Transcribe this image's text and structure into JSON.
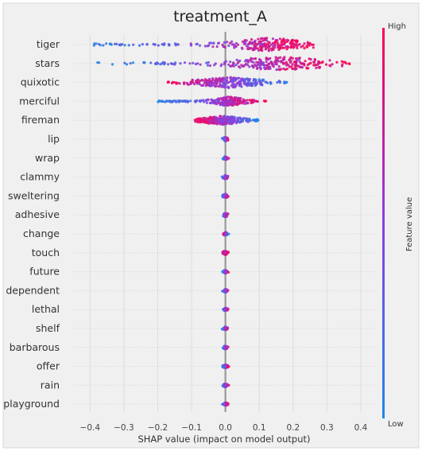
{
  "chart_data": {
    "type": "scatter",
    "title": "treatment_A",
    "xlabel": "SHAP value (impact on model output)",
    "xlim": [
      -0.45,
      0.44
    ],
    "xticks": [
      -0.4,
      -0.3,
      -0.2,
      -0.1,
      0.0,
      0.1,
      0.2,
      0.3,
      0.4
    ],
    "xtick_labels": [
      "−0.4",
      "−0.3",
      "−0.2",
      "−0.1",
      "0.0",
      "0.1",
      "0.2",
      "0.3",
      "0.4"
    ],
    "colorbar": {
      "label": "Feature value",
      "high": "High",
      "low": "Low",
      "color_low": "#1e88e5",
      "color_high": "#ff0052"
    },
    "grid": true,
    "features": [
      {
        "name": "tiger",
        "min": -0.39,
        "max": 0.26,
        "center": 0.13,
        "spread": 0.06,
        "width": 0.95,
        "low_side": "left"
      },
      {
        "name": "stars",
        "min": -0.38,
        "max": 0.37,
        "center": 0.16,
        "spread": 0.07,
        "width": 1.0,
        "low_side": "left"
      },
      {
        "name": "quixotic",
        "min": -0.17,
        "max": 0.2,
        "center": 0.01,
        "spread": 0.05,
        "width": 0.75,
        "low_side": "right"
      },
      {
        "name": "merciful",
        "min": -0.2,
        "max": 0.12,
        "center": 0.01,
        "spread": 0.025,
        "width": 0.65,
        "low_side": "left"
      },
      {
        "name": "fireman",
        "min": -0.09,
        "max": 0.1,
        "center": -0.01,
        "spread": 0.03,
        "width": 0.65,
        "low_side": "right"
      },
      {
        "name": "lip",
        "min": -0.01,
        "max": 0.01,
        "center": 0.0,
        "spread": 0.004,
        "width": 0.3,
        "low_side": "left"
      },
      {
        "name": "wrap",
        "min": -0.01,
        "max": 0.01,
        "center": 0.0,
        "spread": 0.004,
        "width": 0.25,
        "low_side": "left"
      },
      {
        "name": "clammy",
        "min": -0.01,
        "max": 0.01,
        "center": 0.0,
        "spread": 0.004,
        "width": 0.3,
        "low_side": "left"
      },
      {
        "name": "sweltering",
        "min": -0.01,
        "max": 0.01,
        "center": 0.0,
        "spread": 0.004,
        "width": 0.3,
        "low_side": "left"
      },
      {
        "name": "adhesive",
        "min": -0.01,
        "max": 0.01,
        "center": 0.0,
        "spread": 0.004,
        "width": 0.3,
        "low_side": "left"
      },
      {
        "name": "change",
        "min": -0.01,
        "max": 0.01,
        "center": 0.0,
        "spread": 0.004,
        "width": 0.25,
        "low_side": "right"
      },
      {
        "name": "touch",
        "min": -0.05,
        "max": 0.01,
        "center": 0.0,
        "spread": 0.004,
        "width": 0.3,
        "low_side": "left"
      },
      {
        "name": "future",
        "min": -0.01,
        "max": 0.01,
        "center": 0.0,
        "spread": 0.004,
        "width": 0.25,
        "low_side": "left"
      },
      {
        "name": "dependent",
        "min": -0.01,
        "max": 0.01,
        "center": 0.0,
        "spread": 0.004,
        "width": 0.25,
        "low_side": "left"
      },
      {
        "name": "lethal",
        "min": -0.01,
        "max": 0.01,
        "center": 0.0,
        "spread": 0.004,
        "width": 0.25,
        "low_side": "left"
      },
      {
        "name": "shelf",
        "min": -0.01,
        "max": 0.01,
        "center": 0.0,
        "spread": 0.004,
        "width": 0.25,
        "low_side": "left"
      },
      {
        "name": "barbarous",
        "min": -0.01,
        "max": 0.01,
        "center": 0.0,
        "spread": 0.004,
        "width": 0.25,
        "low_side": "left"
      },
      {
        "name": "offer",
        "min": -0.01,
        "max": 0.01,
        "center": 0.0,
        "spread": 0.004,
        "width": 0.25,
        "low_side": "left"
      },
      {
        "name": "rain",
        "min": -0.01,
        "max": 0.01,
        "center": 0.0,
        "spread": 0.004,
        "width": 0.25,
        "low_side": "left"
      },
      {
        "name": "playground",
        "min": -0.01,
        "max": 0.01,
        "center": 0.0,
        "spread": 0.004,
        "width": 0.25,
        "low_side": "left"
      }
    ]
  }
}
